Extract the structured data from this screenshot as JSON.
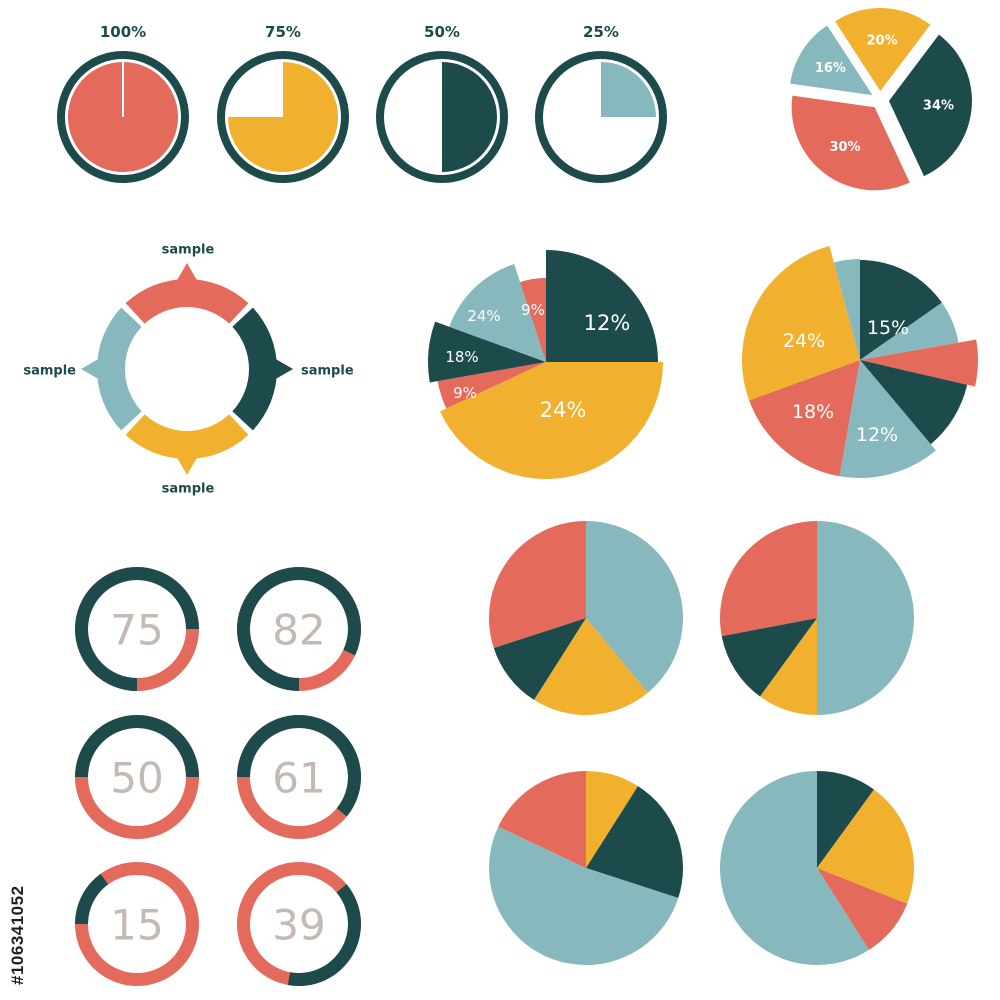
{
  "colors": {
    "dark": "#1d4a4a",
    "red": "#e46a5c",
    "yellow": "#f1b12f",
    "teal": "#86b8bd",
    "grey_text": "#c4b9b3",
    "white": "#ffffff"
  },
  "stock_id": "#106341052",
  "chart_data": [
    {
      "type": "pie",
      "id": "progress-100",
      "label": "100%",
      "value": 100,
      "color": "red"
    },
    {
      "type": "pie",
      "id": "progress-75",
      "label": "75%",
      "value": 75,
      "color": "yellow"
    },
    {
      "type": "pie",
      "id": "progress-50",
      "label": "50%",
      "value": 50,
      "color": "dark"
    },
    {
      "type": "pie",
      "id": "progress-25",
      "label": "25%",
      "value": 25,
      "color": "teal"
    },
    {
      "type": "pie",
      "id": "exploded-pie",
      "slices": [
        {
          "label": "20%",
          "value": 20,
          "color": "yellow"
        },
        {
          "label": "34%",
          "value": 34,
          "color": "dark"
        },
        {
          "label": "30%",
          "value": 30,
          "color": "red"
        },
        {
          "label": "16%",
          "value": 16,
          "color": "teal"
        }
      ]
    },
    {
      "type": "diagram",
      "id": "cycle-ring",
      "segments": [
        {
          "label": "sample",
          "position": "top",
          "color": "red"
        },
        {
          "label": "sample",
          "position": "right",
          "color": "dark"
        },
        {
          "label": "sample",
          "position": "bottom",
          "color": "yellow"
        },
        {
          "label": "sample",
          "position": "left",
          "color": "teal"
        }
      ]
    },
    {
      "type": "pie",
      "id": "variable-radius-pie-1",
      "slices": [
        {
          "label": "12%",
          "value": 12,
          "color": "dark"
        },
        {
          "label": "24%",
          "value": 24,
          "color": "yellow"
        },
        {
          "label": "9%",
          "value": 9,
          "color": "red"
        },
        {
          "label": "18%",
          "value": 18,
          "color": "dark"
        },
        {
          "label": "24%",
          "value": 24,
          "color": "teal"
        },
        {
          "label": "9%",
          "value": 9,
          "color": "red"
        }
      ]
    },
    {
      "type": "pie",
      "id": "variable-radius-pie-2",
      "slices": [
        {
          "label": "15%",
          "value": 15,
          "color": "dark"
        },
        {
          "label": "",
          "value": 5,
          "color": "teal"
        },
        {
          "label": "",
          "value": 5,
          "color": "red"
        },
        {
          "label": "",
          "value": 9,
          "color": "dark"
        },
        {
          "label": "12%",
          "value": 12,
          "color": "teal"
        },
        {
          "label": "18%",
          "value": 18,
          "color": "red"
        },
        {
          "label": "24%",
          "value": 24,
          "color": "yellow"
        },
        {
          "label": "",
          "value": 5,
          "color": "teal"
        }
      ]
    },
    {
      "type": "pie",
      "id": "donut-75",
      "label": "75",
      "value": 75
    },
    {
      "type": "pie",
      "id": "donut-82",
      "label": "82",
      "value": 82
    },
    {
      "type": "pie",
      "id": "donut-50",
      "label": "50",
      "value": 50
    },
    {
      "type": "pie",
      "id": "donut-61",
      "label": "61",
      "value": 61
    },
    {
      "type": "pie",
      "id": "donut-15",
      "label": "15",
      "value": 15
    },
    {
      "type": "pie",
      "id": "donut-39",
      "label": "39",
      "value": 39
    },
    {
      "type": "pie",
      "id": "plain-pie-1",
      "slices": [
        {
          "value": 39,
          "color": "teal"
        },
        {
          "value": 20,
          "color": "yellow"
        },
        {
          "value": 11,
          "color": "dark"
        },
        {
          "value": 30,
          "color": "red"
        }
      ]
    },
    {
      "type": "pie",
      "id": "plain-pie-2",
      "slices": [
        {
          "value": 50,
          "color": "teal"
        },
        {
          "value": 10,
          "color": "yellow"
        },
        {
          "value": 12,
          "color": "dark"
        },
        {
          "value": 28,
          "color": "red"
        }
      ]
    },
    {
      "type": "pie",
      "id": "plain-pie-3",
      "slices": [
        {
          "value": 9,
          "color": "yellow"
        },
        {
          "value": 21,
          "color": "dark"
        },
        {
          "value": 52,
          "color": "teal"
        },
        {
          "value": 18,
          "color": "red"
        }
      ]
    },
    {
      "type": "pie",
      "id": "plain-pie-4",
      "slices": [
        {
          "value": 10,
          "color": "dark"
        },
        {
          "value": 21,
          "color": "yellow"
        },
        {
          "value": 10,
          "color": "red"
        },
        {
          "value": 59,
          "color": "teal"
        }
      ]
    }
  ]
}
